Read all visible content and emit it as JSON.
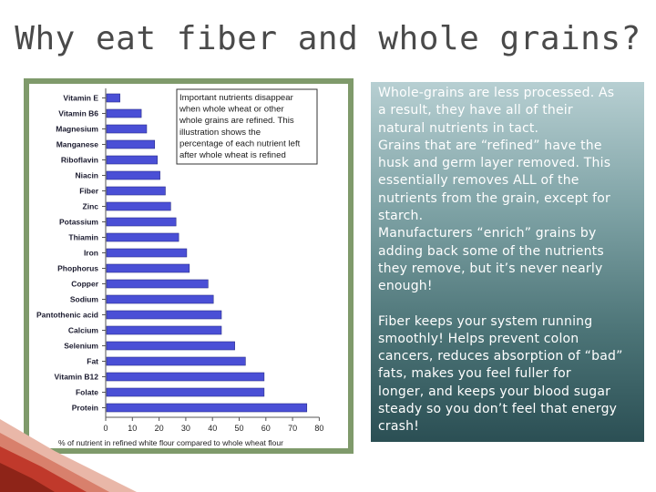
{
  "slide": {
    "title": "Why eat fiber and whole grains?"
  },
  "text_panel": {
    "para1_lines": [
      "Whole-grains are less processed. As",
      "a result, they have all of their",
      "natural nutrients in tact.",
      "Grains that are “refined” have the",
      "husk and germ layer removed. This",
      "essentially removes ALL of the",
      "nutrients from the grain, except for",
      "starch.",
      "Manufacturers “enrich” grains by",
      "adding back some of the nutrients",
      "they remove, but it’s never nearly",
      "enough!"
    ],
    "para2_lines": [
      "Fiber keeps your system running",
      "smoothly! Helps prevent colon",
      "cancers, reduces absorption of “bad”",
      "fats, makes you feel fuller for",
      "longer, and keeps your blood sugar",
      "steady so you don’t feel that energy",
      "crash!"
    ]
  },
  "chart_data": {
    "type": "bar",
    "orientation": "horizontal",
    "categories": [
      "Vitamin E",
      "Vitamin B6",
      "Magnesium",
      "Manganese",
      "Riboflavin",
      "Niacin",
      "Fiber",
      "Zinc",
      "Potassium",
      "Thiamin",
      "Iron",
      "Phophorus",
      "Copper",
      "Sodium",
      "Pantothenic acid",
      "Calcium",
      "Selenium",
      "Fat",
      "Vitamin B12",
      "Folate",
      "Protein"
    ],
    "values": [
      5,
      13,
      15,
      18,
      19,
      20,
      22,
      24,
      26,
      27,
      30,
      31,
      38,
      40,
      43,
      43,
      48,
      52,
      59,
      59,
      75
    ],
    "xlabel": "% of nutrient in refined white flour compared to whole wheat flour",
    "xlim": [
      0,
      80
    ],
    "xticks": [
      0,
      10,
      20,
      30,
      40,
      50,
      60,
      70,
      80
    ],
    "annotation_lines": [
      "Important nutrients disappear",
      "when whole wheat or other",
      "whole grains are refined. This",
      "illustration shows the",
      "percentage of each nutrient left",
      "after whole wheat is refined"
    ],
    "bar_color": "#4a4fd6",
    "grid": false
  },
  "colors": {
    "frame": "#7f9a6b",
    "panel_top": "#b7cfd2",
    "panel_bottom": "#2b4f54",
    "decor_red": "#c0392b"
  }
}
